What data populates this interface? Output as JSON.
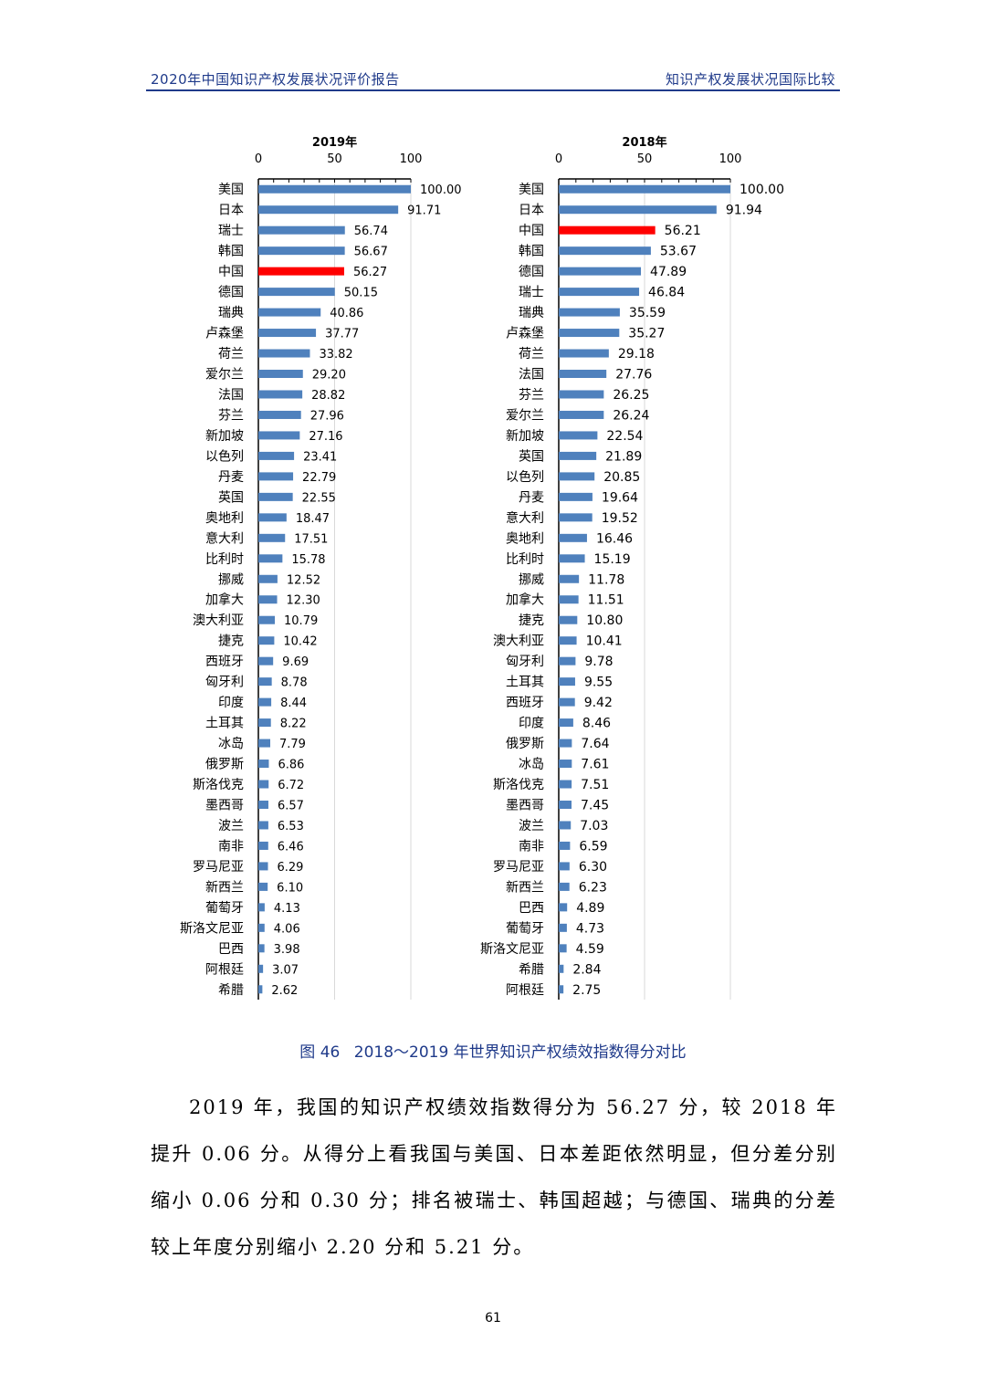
{
  "header": {
    "left_title": "2020年中国知识产权发展状况评价报告",
    "right_title": "知识产权发展状况国际比较"
  },
  "colors": {
    "bar": "#4f81bd",
    "highlight": "#ff0000",
    "header": "#1f3a8a",
    "grid": "#d9d9d9"
  },
  "chart_data": [
    {
      "type": "bar",
      "orientation": "horizontal",
      "title": "2019年",
      "xlim": [
        0,
        100
      ],
      "x_ticks": [
        0,
        50,
        100
      ],
      "axis_position": "top",
      "grid": true,
      "highlight_category": "中国",
      "categories": [
        "美国",
        "日本",
        "瑞士",
        "韩国",
        "中国",
        "德国",
        "瑞典",
        "卢森堡",
        "荷兰",
        "爱尔兰",
        "法国",
        "芬兰",
        "新加坡",
        "以色列",
        "丹麦",
        "英国",
        "奥地利",
        "意大利",
        "比利时",
        "挪威",
        "加拿大",
        "澳大利亚",
        "捷克",
        "西班牙",
        "匈牙利",
        "印度",
        "土耳其",
        "冰岛",
        "俄罗斯",
        "斯洛伐克",
        "墨西哥",
        "波兰",
        "南非",
        "罗马尼亚",
        "新西兰",
        "葡萄牙",
        "斯洛文尼亚",
        "巴西",
        "阿根廷",
        "希腊"
      ],
      "values": [
        100.0,
        91.71,
        56.74,
        56.67,
        56.27,
        50.15,
        40.86,
        37.77,
        33.82,
        29.2,
        28.82,
        27.96,
        27.16,
        23.41,
        22.79,
        22.55,
        18.47,
        17.51,
        15.78,
        12.52,
        12.3,
        10.79,
        10.42,
        9.69,
        8.78,
        8.44,
        8.22,
        7.79,
        6.86,
        6.72,
        6.57,
        6.53,
        6.46,
        6.29,
        6.1,
        4.13,
        4.06,
        3.98,
        3.07,
        2.62
      ],
      "labels": [
        "100.00",
        "91.71",
        "56.74",
        "56.67",
        "56.27",
        "50.15",
        "40.86",
        "37.77",
        "33.82",
        "29.20",
        "28.82",
        "27.96",
        "27.16",
        "23.41",
        "22.79",
        "22.55",
        "18.47",
        "17.51",
        "15.78",
        "12.52",
        "12.30",
        "10.79",
        "10.42",
        "9.69",
        "8.78",
        "8.44",
        "8.22",
        "7.79",
        "6.86",
        "6.72",
        "6.57",
        "6.53",
        "6.46",
        "6.29",
        "6.10",
        "4.13",
        "4.06",
        "3.98",
        "3.07",
        "2.62"
      ]
    },
    {
      "type": "bar",
      "orientation": "horizontal",
      "title": "2018年",
      "xlim": [
        0,
        100
      ],
      "x_ticks": [
        0,
        50,
        100
      ],
      "axis_position": "top",
      "grid": true,
      "highlight_category": "中国",
      "categories": [
        "美国",
        "日本",
        "中国",
        "韩国",
        "德国",
        "瑞士",
        "瑞典",
        "卢森堡",
        "荷兰",
        "法国",
        "芬兰",
        "爱尔兰",
        "新加坡",
        "英国",
        "以色列",
        "丹麦",
        "意大利",
        "奥地利",
        "比利时",
        "挪威",
        "加拿大",
        "捷克",
        "澳大利亚",
        "匈牙利",
        "土耳其",
        "西班牙",
        "印度",
        "俄罗斯",
        "冰岛",
        "斯洛伐克",
        "墨西哥",
        "波兰",
        "南非",
        "罗马尼亚",
        "新西兰",
        "巴西",
        "葡萄牙",
        "斯洛文尼亚",
        "希腊",
        "阿根廷"
      ],
      "values": [
        100.0,
        91.94,
        56.21,
        53.67,
        47.89,
        46.84,
        35.59,
        35.27,
        29.18,
        27.76,
        26.25,
        26.24,
        22.54,
        21.89,
        20.85,
        19.64,
        19.52,
        16.46,
        15.19,
        11.78,
        11.51,
        10.8,
        10.41,
        9.78,
        9.55,
        9.42,
        8.46,
        7.64,
        7.61,
        7.51,
        7.45,
        7.03,
        6.59,
        6.3,
        6.23,
        4.89,
        4.73,
        4.59,
        2.84,
        2.75
      ],
      "labels": [
        "100.00",
        "91.94",
        "56.21",
        "53.67",
        "47.89",
        "46.84",
        "35.59",
        "35.27",
        "29.18",
        "27.76",
        "26.25",
        "26.24",
        "22.54",
        "21.89",
        "20.85",
        "19.64",
        "19.52",
        "16.46",
        "15.19",
        "11.78",
        "11.51",
        "10.80",
        "10.41",
        "9.78",
        "9.55",
        "9.42",
        "8.46",
        "7.64",
        "7.61",
        "7.51",
        "7.45",
        "7.03",
        "6.59",
        "6.30",
        "6.23",
        "4.89",
        "4.73",
        "4.59",
        "2.84",
        "2.75"
      ]
    }
  ],
  "caption": {
    "figure_no": "图 46",
    "text": "2018～2019 年世界知识产权绩效指数得分对比"
  },
  "paragraph": "2019 年，我国的知识产权绩效指数得分为 56.27 分，较 2018 年提升 0.06 分。从得分上看我国与美国、日本差距依然明显，但分差分别缩小 0.06 分和 0.30 分；排名被瑞士、韩国超越；与德国、瑞典的分差较上年度分别缩小 2.20 分和 5.21 分。",
  "page_number": "61"
}
